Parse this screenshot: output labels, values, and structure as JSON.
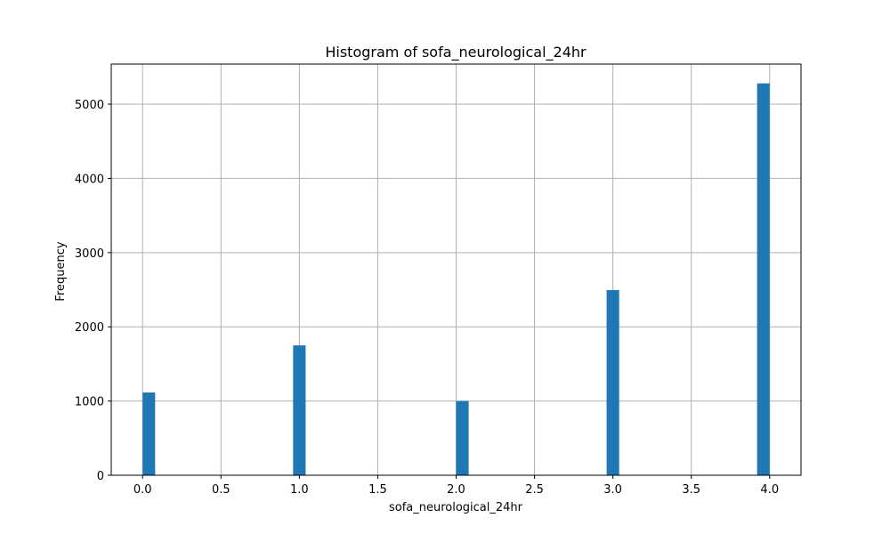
{
  "chart_data": {
    "type": "bar",
    "title": "Histogram of sofa_neurological_24hr",
    "xlabel": "sofa_neurological_24hr",
    "ylabel": "Frequency",
    "xlim": [
      -0.2,
      4.2
    ],
    "ylim": [
      0,
      5540
    ],
    "xticks": [
      0.0,
      0.5,
      1.0,
      1.5,
      2.0,
      2.5,
      3.0,
      3.5,
      4.0
    ],
    "xtick_labels": [
      "0.0",
      "0.5",
      "1.0",
      "1.5",
      "2.0",
      "2.5",
      "3.0",
      "3.5",
      "4.0"
    ],
    "yticks": [
      0,
      1000,
      2000,
      3000,
      4000,
      5000
    ],
    "ytick_labels": [
      "0",
      "1000",
      "2000",
      "3000",
      "4000",
      "5000"
    ],
    "bin_width": 0.08,
    "bars": [
      {
        "x_start": 0.0,
        "x_end": 0.08,
        "value": 1115
      },
      {
        "x_start": 0.96,
        "x_end": 1.04,
        "value": 1750
      },
      {
        "x_start": 2.0,
        "x_end": 2.08,
        "value": 1000
      },
      {
        "x_start": 2.96,
        "x_end": 3.04,
        "value": 2495
      },
      {
        "x_start": 3.92,
        "x_end": 4.0,
        "value": 5280
      }
    ],
    "grid": true,
    "bar_color": "#1f77b4"
  }
}
